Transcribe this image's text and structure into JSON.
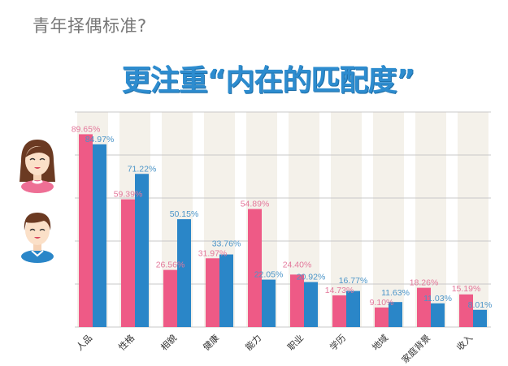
{
  "subtitle": "青年择偶标准?",
  "headline": "更注重“内在的匹配度”",
  "legend": [
    {
      "icon": "female-avatar-icon",
      "color": "#ee5a86"
    },
    {
      "icon": "male-avatar-icon",
      "color": "#2a86c8"
    }
  ],
  "chart_data": {
    "type": "bar",
    "title": "",
    "xlabel": "",
    "ylabel": "",
    "ylim": [
      0,
      100
    ],
    "grid": true,
    "gridlines": [
      0,
      20,
      40,
      60,
      80,
      100
    ],
    "categories": [
      "人品",
      "性格",
      "相貌",
      "健康",
      "能力",
      "职业",
      "学历",
      "地域",
      "家庭背景",
      "收入"
    ],
    "series": [
      {
        "color": "#ee5a86",
        "values": [
          89.65,
          59.39,
          26.56,
          31.97,
          54.89,
          24.4,
          14.73,
          9.1,
          18.26,
          15.19
        ],
        "labels": [
          "89.65%",
          "59.39%",
          "26.56%",
          "31.97%",
          "54.89%",
          "24.40%",
          "14.73%",
          "9.10%",
          "18.26%",
          "15.19%"
        ]
      },
      {
        "color": "#2a86c8",
        "values": [
          84.97,
          71.22,
          50.15,
          33.76,
          22.05,
          20.92,
          16.77,
          11.63,
          11.03,
          8.01
        ],
        "labels": [
          "84.97%",
          "71.22%",
          "50.15%",
          "33.76%",
          "22.05%",
          "20.92%",
          "16.77%",
          "11.63%",
          "11.03%",
          "8.01%"
        ]
      }
    ]
  }
}
